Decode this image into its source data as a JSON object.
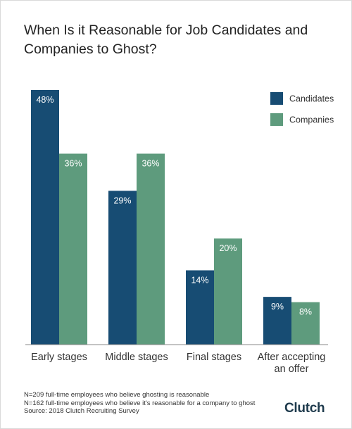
{
  "title_lines": [
    "When Is it Reasonable for Job Candidates and",
    "Companies to Ghost?"
  ],
  "colors": {
    "candidates": "#174c73",
    "companies": "#5e9b7d",
    "axis": "#888888"
  },
  "chart_data": {
    "type": "bar",
    "title": "When Is it Reasonable for Job Candidates and Companies to Ghost?",
    "categories": [
      [
        "Early stages"
      ],
      [
        "Middle stages"
      ],
      [
        "Final stages"
      ],
      [
        "After accepting",
        "an offer"
      ]
    ],
    "series": [
      {
        "name": "Candidates",
        "values": [
          48,
          29,
          14,
          9
        ],
        "labels": [
          "48%",
          "29%",
          "14%",
          "9%"
        ],
        "color": "#174c73"
      },
      {
        "name": "Companies",
        "values": [
          36,
          36,
          20,
          8
        ],
        "labels": [
          "36%",
          "36%",
          "20%",
          "8%"
        ],
        "color": "#5e9b7d"
      }
    ],
    "ylim": [
      0,
      48
    ],
    "legend": "top-right",
    "grid": false
  },
  "footnotes": [
    "N=209 full-time employees who believe ghosting is reasonable",
    "N=162 full-time employees who believe it's reasonable for a company to ghost",
    "Source: 2018 Clutch Recruiting Survey"
  ],
  "logo": "Clutch"
}
